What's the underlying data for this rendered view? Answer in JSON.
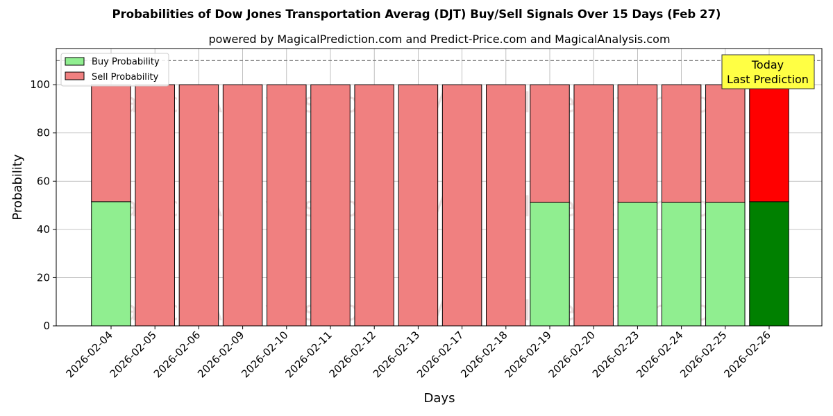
{
  "chart_data": {
    "type": "bar",
    "stacked": true,
    "title": "Probabilities of Dow Jones Transportation Averag (DJT) Buy/Sell Signals Over 15 Days (Feb 27)",
    "subtitle": "powered by MagicalPrediction.com and Predict-Price.com and MagicalAnalysis.com",
    "xlabel": "Days",
    "ylabel": "Probability",
    "ylim": [
      0,
      115
    ],
    "yticks": [
      0,
      20,
      40,
      60,
      80,
      100
    ],
    "grid": true,
    "legend_position": "top-left",
    "reference_line": 110,
    "categories": [
      "2026-02-04",
      "2026-02-05",
      "2026-02-06",
      "2026-02-09",
      "2026-02-10",
      "2026-02-11",
      "2026-02-12",
      "2026-02-13",
      "2026-02-17",
      "2026-02-18",
      "2026-02-19",
      "2026-02-20",
      "2026-02-23",
      "2026-02-24",
      "2026-02-25",
      "2026-02-26"
    ],
    "series": [
      {
        "name": "Buy Probability",
        "color": "#90ee90",
        "highlight_color": "#008000",
        "values": [
          51.5,
          0,
          0,
          0,
          0,
          0,
          0,
          0,
          0,
          0,
          51.2,
          0,
          51.2,
          51.2,
          51.2,
          51.5
        ]
      },
      {
        "name": "Sell Probability",
        "color": "#f08080",
        "highlight_color": "#ff0000",
        "values": [
          48.5,
          100,
          100,
          100,
          100,
          100,
          100,
          100,
          100,
          100,
          48.8,
          100,
          48.8,
          48.8,
          48.8,
          48.5
        ]
      }
    ],
    "highlight_index": 15,
    "annotation": {
      "line1": "Today",
      "line2": "Last Prediction",
      "bg": "#ffff44"
    },
    "watermarks": [
      "MagicalAnalysis.com",
      "MagicalPrediction.com"
    ]
  }
}
